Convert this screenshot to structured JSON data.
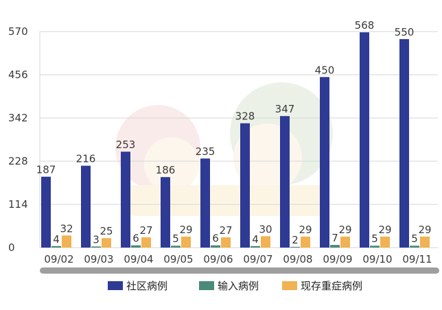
{
  "chart_data": {
    "type": "bar",
    "categories": [
      "09/02",
      "09/03",
      "09/04",
      "09/05",
      "09/06",
      "09/07",
      "09/08",
      "09/09",
      "09/10",
      "09/11"
    ],
    "series": [
      {
        "name": "社区病例",
        "color": "#2e3a94",
        "values": [
          187,
          216,
          253,
          186,
          235,
          328,
          347,
          450,
          568,
          550
        ]
      },
      {
        "name": "输入病例",
        "color": "#4b8a78",
        "values": [
          4,
          3,
          6,
          5,
          6,
          4,
          2,
          7,
          5,
          5
        ]
      },
      {
        "name": "现存重症病例",
        "color": "#f0b252",
        "values": [
          32,
          25,
          27,
          29,
          27,
          30,
          29,
          29,
          29,
          29
        ]
      }
    ],
    "yticks": [
      "0",
      "114",
      "228",
      "342",
      "456",
      "570"
    ],
    "ylim": [
      0,
      570
    ],
    "grid": true,
    "legend_position": "bottom",
    "data_labels": true
  }
}
